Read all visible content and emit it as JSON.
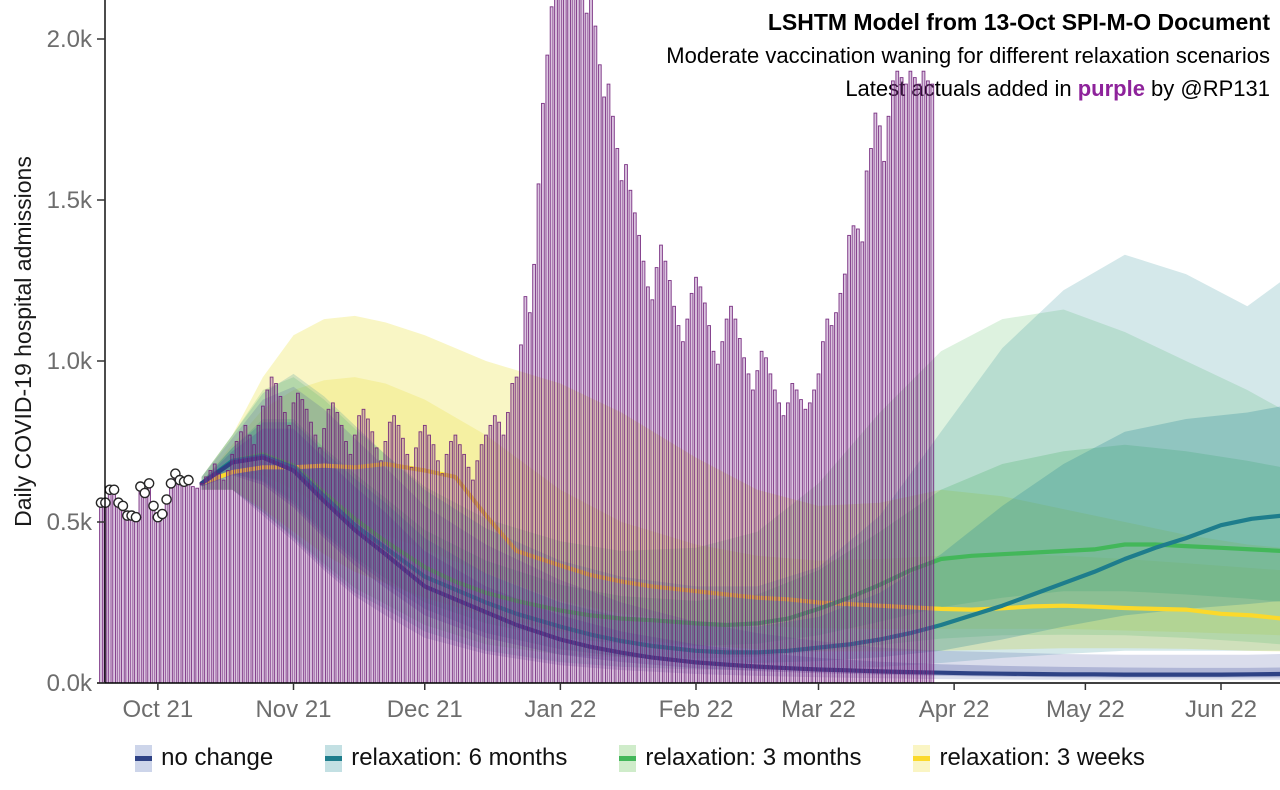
{
  "header": {
    "title": "LSHTM Model from 13-Oct SPI-M-O Document",
    "subtitle": "Moderate vaccination waning for different relaxation scenarios",
    "annotation_prefix": "Latest actuals added in ",
    "annotation_highlight": "purple",
    "annotation_suffix": " by @RP131",
    "annotation_highlight_color": "#8E239B"
  },
  "legend": {
    "items": [
      {
        "label": "no change",
        "band_color": "#cdd5ea",
        "line_color": "#2e4285"
      },
      {
        "label": "relaxation: 6 months",
        "band_color": "#c3e0e3",
        "line_color": "#1e7d8c"
      },
      {
        "label": "relaxation: 3 months",
        "band_color": "#cfecca",
        "line_color": "#43b75a"
      },
      {
        "label": "relaxation: 3 weeks",
        "band_color": "#faf5c4",
        "line_color": "#fbd92b"
      }
    ]
  },
  "chart_data": {
    "type": "line",
    "title": "LSHTM Model from 13-Oct SPI-M-O Document",
    "subtitle": "Moderate vaccination waning for different relaxation scenarios",
    "ylabel": "Daily COVID-19 hospital admissions",
    "xlabel": "",
    "ylim": [
      0,
      2.12
    ],
    "grid": "off",
    "legend_position": "bottom",
    "y_ticks": [
      {
        "value": 0.0,
        "label": "0.0k"
      },
      {
        "value": 0.5,
        "label": "0.5k"
      },
      {
        "value": 1.0,
        "label": "1.0k"
      },
      {
        "value": 1.5,
        "label": "1.5k"
      },
      {
        "value": 2.0,
        "label": "2.0k"
      }
    ],
    "x_axis": {
      "unit": "days",
      "day0_date": "2021-09-18",
      "range": [
        0,
        270
      ],
      "ticks": [
        {
          "day": 13,
          "label": "Oct 21"
        },
        {
          "day": 44,
          "label": "Nov 21"
        },
        {
          "day": 74,
          "label": "Dec 21"
        },
        {
          "day": 105,
          "label": "Jan 22"
        },
        {
          "day": 136,
          "label": "Feb 22"
        },
        {
          "day": 164,
          "label": "Mar 22"
        },
        {
          "day": 195,
          "label": "Apr 22"
        },
        {
          "day": 225,
          "label": "May 22"
        },
        {
          "day": 256,
          "label": "Jun 22"
        }
      ]
    },
    "actuals_bars": {
      "name": "latest actuals (daily admissions, thousands)",
      "stroke": "#6f2079",
      "fill": "#8e4a9e",
      "start_day": 0,
      "values": [
        0.56,
        0.56,
        0.6,
        0.6,
        0.56,
        0.55,
        0.52,
        0.52,
        0.515,
        0.61,
        0.59,
        0.62,
        0.55,
        0.515,
        0.525,
        0.57,
        0.62,
        0.65,
        0.63,
        0.625,
        0.63,
        0.61,
        0.605,
        0.62,
        0.64,
        0.66,
        0.68,
        0.65,
        0.63,
        0.66,
        0.71,
        0.75,
        0.78,
        0.8,
        0.77,
        0.74,
        0.8,
        0.86,
        0.91,
        0.95,
        0.93,
        0.89,
        0.84,
        0.8,
        0.87,
        0.9,
        0.88,
        0.85,
        0.81,
        0.77,
        0.73,
        0.79,
        0.85,
        0.87,
        0.84,
        0.8,
        0.75,
        0.71,
        0.77,
        0.83,
        0.85,
        0.82,
        0.78,
        0.73,
        0.69,
        0.75,
        0.81,
        0.83,
        0.8,
        0.76,
        0.71,
        0.67,
        0.73,
        0.78,
        0.8,
        0.77,
        0.74,
        0.69,
        0.65,
        0.71,
        0.75,
        0.77,
        0.74,
        0.71,
        0.67,
        0.63,
        0.69,
        0.74,
        0.77,
        0.8,
        0.83,
        0.81,
        0.77,
        0.84,
        0.93,
        0.95,
        1.05,
        1.2,
        1.15,
        1.3,
        1.55,
        1.8,
        1.95,
        2.1,
        2.18,
        2.22,
        2.27,
        2.2,
        2.3,
        2.28,
        2.18,
        2.08,
        2.14,
        2.04,
        1.92,
        1.82,
        1.86,
        1.76,
        1.66,
        1.56,
        1.61,
        1.53,
        1.46,
        1.39,
        1.31,
        1.23,
        1.19,
        1.29,
        1.36,
        1.31,
        1.25,
        1.17,
        1.11,
        1.06,
        1.13,
        1.21,
        1.26,
        1.23,
        1.18,
        1.11,
        1.03,
        0.99,
        1.06,
        1.13,
        1.17,
        1.13,
        1.07,
        1.01,
        0.96,
        0.91,
        0.97,
        1.03,
        1.01,
        0.96,
        0.91,
        0.87,
        0.83,
        0.87,
        0.93,
        0.91,
        0.88,
        0.85,
        0.87,
        0.91,
        0.96,
        1.06,
        1.13,
        1.11,
        1.15,
        1.21,
        1.27,
        1.39,
        1.42,
        1.41,
        1.37,
        1.59,
        1.66,
        1.77,
        1.73,
        1.62,
        1.76,
        1.87,
        1.9,
        1.88,
        1.86,
        1.9,
        1.88,
        1.86,
        1.9,
        1.87,
        1.86
      ]
    },
    "fitted_points": {
      "name": "model-fit data points (open circles)",
      "days": [
        0,
        1,
        2,
        3,
        4,
        5,
        6,
        7,
        8,
        9,
        10,
        11,
        12,
        13,
        14,
        15,
        16,
        17,
        18,
        19,
        20
      ],
      "values": [
        0.56,
        0.56,
        0.6,
        0.6,
        0.56,
        0.55,
        0.52,
        0.52,
        0.515,
        0.61,
        0.59,
        0.62,
        0.55,
        0.515,
        0.525,
        0.57,
        0.62,
        0.65,
        0.63,
        0.625,
        0.63
      ]
    },
    "median_days": [
      23,
      30,
      37,
      44,
      51,
      58,
      65,
      74,
      81,
      88,
      95,
      105,
      112,
      119,
      126,
      136,
      143,
      150,
      157,
      164,
      171,
      178,
      185,
      192,
      199,
      206,
      213,
      220,
      227,
      234,
      241,
      248,
      256,
      263,
      270
    ],
    "ribbon_days": [
      23,
      30,
      37,
      44,
      51,
      58,
      65,
      74,
      88,
      105,
      119,
      136,
      150,
      164,
      178,
      192,
      206,
      220,
      234,
      248,
      262,
      270
    ],
    "series": [
      {
        "id": "relaxation-3-weeks",
        "name": "relaxation: 3 weeks",
        "line_color": "#fbd92b",
        "band_color": "#ece23e",
        "outer_opacity": 0.3,
        "inner_opacity": 0.26,
        "median": [
          0.62,
          0.655,
          0.67,
          0.67,
          0.675,
          0.67,
          0.68,
          0.66,
          0.64,
          0.52,
          0.41,
          0.365,
          0.335,
          0.315,
          0.3,
          0.285,
          0.275,
          0.265,
          0.26,
          0.25,
          0.245,
          0.24,
          0.235,
          0.23,
          0.228,
          0.232,
          0.238,
          0.24,
          0.237,
          0.233,
          0.23,
          0.228,
          0.215,
          0.21,
          0.2
        ],
        "outer_upper": [
          0.64,
          0.77,
          0.95,
          1.08,
          1.13,
          1.14,
          1.12,
          1.08,
          1.0,
          0.93,
          0.84,
          0.7,
          0.6,
          0.55,
          0.56,
          0.6,
          0.58,
          0.54,
          0.5,
          0.46,
          0.43,
          0.42
        ],
        "outer_lower": [
          0.6,
          0.6,
          0.54,
          0.47,
          0.4,
          0.345,
          0.31,
          0.265,
          0.21,
          0.16,
          0.135,
          0.118,
          0.105,
          0.098,
          0.098,
          0.1,
          0.104,
          0.108,
          0.108,
          0.106,
          0.1,
          0.098
        ],
        "inner_upper": [
          0.625,
          0.74,
          0.85,
          0.91,
          0.94,
          0.95,
          0.93,
          0.88,
          0.77,
          0.6,
          0.5,
          0.43,
          0.395,
          0.38,
          0.385,
          0.395,
          0.4,
          0.395,
          0.385,
          0.372,
          0.358,
          0.35
        ],
        "inner_lower": [
          0.61,
          0.655,
          0.645,
          0.6,
          0.545,
          0.5,
          0.46,
          0.415,
          0.34,
          0.255,
          0.215,
          0.19,
          0.178,
          0.17,
          0.168,
          0.168,
          0.168,
          0.168,
          0.163,
          0.158,
          0.152,
          0.148
        ]
      },
      {
        "id": "relaxation-3-months",
        "name": "relaxation: 3 months",
        "line_color": "#43b75a",
        "band_color": "#55bd60",
        "outer_opacity": 0.2,
        "inner_opacity": 0.28,
        "median": [
          0.62,
          0.69,
          0.71,
          0.675,
          0.59,
          0.51,
          0.44,
          0.36,
          0.315,
          0.28,
          0.255,
          0.225,
          0.21,
          0.2,
          0.195,
          0.185,
          0.18,
          0.185,
          0.2,
          0.23,
          0.265,
          0.305,
          0.35,
          0.385,
          0.395,
          0.4,
          0.405,
          0.41,
          0.415,
          0.43,
          0.43,
          0.425,
          0.42,
          0.415,
          0.41
        ],
        "outer_upper": [
          0.64,
          0.77,
          0.91,
          0.95,
          0.88,
          0.79,
          0.71,
          0.61,
          0.51,
          0.44,
          0.41,
          0.42,
          0.47,
          0.62,
          0.84,
          1.03,
          1.13,
          1.16,
          1.09,
          1.0,
          0.91,
          0.85
        ],
        "outer_lower": [
          0.6,
          0.6,
          0.53,
          0.455,
          0.37,
          0.295,
          0.245,
          0.18,
          0.12,
          0.088,
          0.08,
          0.076,
          0.082,
          0.098,
          0.118,
          0.138,
          0.148,
          0.15,
          0.148,
          0.14,
          0.128,
          0.12
        ],
        "inner_upper": [
          0.625,
          0.73,
          0.82,
          0.82,
          0.73,
          0.65,
          0.575,
          0.475,
          0.38,
          0.305,
          0.27,
          0.255,
          0.275,
          0.35,
          0.47,
          0.6,
          0.68,
          0.72,
          0.74,
          0.72,
          0.69,
          0.67
        ],
        "inner_lower": [
          0.61,
          0.65,
          0.63,
          0.565,
          0.47,
          0.39,
          0.325,
          0.25,
          0.185,
          0.14,
          0.122,
          0.115,
          0.122,
          0.148,
          0.19,
          0.235,
          0.265,
          0.285,
          0.285,
          0.275,
          0.262,
          0.252
        ]
      },
      {
        "id": "relaxation-6-months",
        "name": "relaxation: 6 months",
        "line_color": "#1e7d8c",
        "band_color": "#2a8a96",
        "outer_opacity": 0.2,
        "inner_opacity": 0.28,
        "median": [
          0.62,
          0.69,
          0.705,
          0.67,
          0.58,
          0.49,
          0.42,
          0.33,
          0.29,
          0.25,
          0.215,
          0.175,
          0.15,
          0.13,
          0.115,
          0.1,
          0.095,
          0.095,
          0.1,
          0.11,
          0.12,
          0.135,
          0.155,
          0.18,
          0.21,
          0.24,
          0.275,
          0.31,
          0.345,
          0.385,
          0.42,
          0.45,
          0.49,
          0.51,
          0.52
        ],
        "outer_upper": [
          0.64,
          0.77,
          0.9,
          0.96,
          0.89,
          0.8,
          0.71,
          0.6,
          0.48,
          0.38,
          0.33,
          0.3,
          0.3,
          0.36,
          0.52,
          0.78,
          1.04,
          1.22,
          1.33,
          1.27,
          1.17,
          1.25
        ],
        "outer_lower": [
          0.6,
          0.6,
          0.53,
          0.45,
          0.36,
          0.28,
          0.23,
          0.16,
          0.1,
          0.065,
          0.05,
          0.042,
          0.04,
          0.043,
          0.05,
          0.062,
          0.078,
          0.09,
          0.1,
          0.1,
          0.1,
          0.1
        ],
        "inner_upper": [
          0.625,
          0.73,
          0.81,
          0.81,
          0.72,
          0.635,
          0.56,
          0.45,
          0.34,
          0.25,
          0.205,
          0.18,
          0.175,
          0.205,
          0.28,
          0.4,
          0.55,
          0.68,
          0.78,
          0.82,
          0.84,
          0.86
        ],
        "inner_lower": [
          0.61,
          0.65,
          0.625,
          0.555,
          0.46,
          0.38,
          0.31,
          0.23,
          0.155,
          0.105,
          0.082,
          0.066,
          0.062,
          0.068,
          0.08,
          0.1,
          0.135,
          0.175,
          0.21,
          0.23,
          0.245,
          0.255
        ]
      },
      {
        "id": "no-change",
        "name": "no change",
        "line_color": "#2e4285",
        "band_color": "#44549e",
        "outer_opacity": 0.2,
        "inner_opacity": 0.28,
        "median": [
          0.62,
          0.685,
          0.7,
          0.66,
          0.565,
          0.475,
          0.4,
          0.3,
          0.26,
          0.22,
          0.18,
          0.135,
          0.112,
          0.094,
          0.079,
          0.064,
          0.057,
          0.051,
          0.046,
          0.042,
          0.039,
          0.036,
          0.034,
          0.032,
          0.03,
          0.029,
          0.028,
          0.027,
          0.027,
          0.026,
          0.026,
          0.026,
          0.026,
          0.027,
          0.028
        ],
        "outer_upper": [
          0.64,
          0.76,
          0.88,
          0.92,
          0.85,
          0.76,
          0.67,
          0.55,
          0.43,
          0.32,
          0.25,
          0.19,
          0.155,
          0.13,
          0.11,
          0.1,
          0.095,
          0.09,
          0.088,
          0.088,
          0.088,
          0.09
        ],
        "outer_lower": [
          0.6,
          0.6,
          0.52,
          0.44,
          0.35,
          0.27,
          0.21,
          0.14,
          0.09,
          0.055,
          0.04,
          0.028,
          0.022,
          0.018,
          0.015,
          0.012,
          0.011,
          0.01,
          0.01,
          0.01,
          0.01,
          0.01
        ],
        "inner_upper": [
          0.625,
          0.72,
          0.79,
          0.79,
          0.7,
          0.61,
          0.53,
          0.41,
          0.3,
          0.21,
          0.16,
          0.12,
          0.095,
          0.078,
          0.066,
          0.058,
          0.053,
          0.05,
          0.048,
          0.047,
          0.047,
          0.048
        ],
        "inner_lower": [
          0.61,
          0.645,
          0.615,
          0.545,
          0.45,
          0.365,
          0.295,
          0.21,
          0.14,
          0.088,
          0.065,
          0.046,
          0.037,
          0.03,
          0.026,
          0.022,
          0.02,
          0.018,
          0.017,
          0.017,
          0.017,
          0.017
        ]
      }
    ]
  }
}
